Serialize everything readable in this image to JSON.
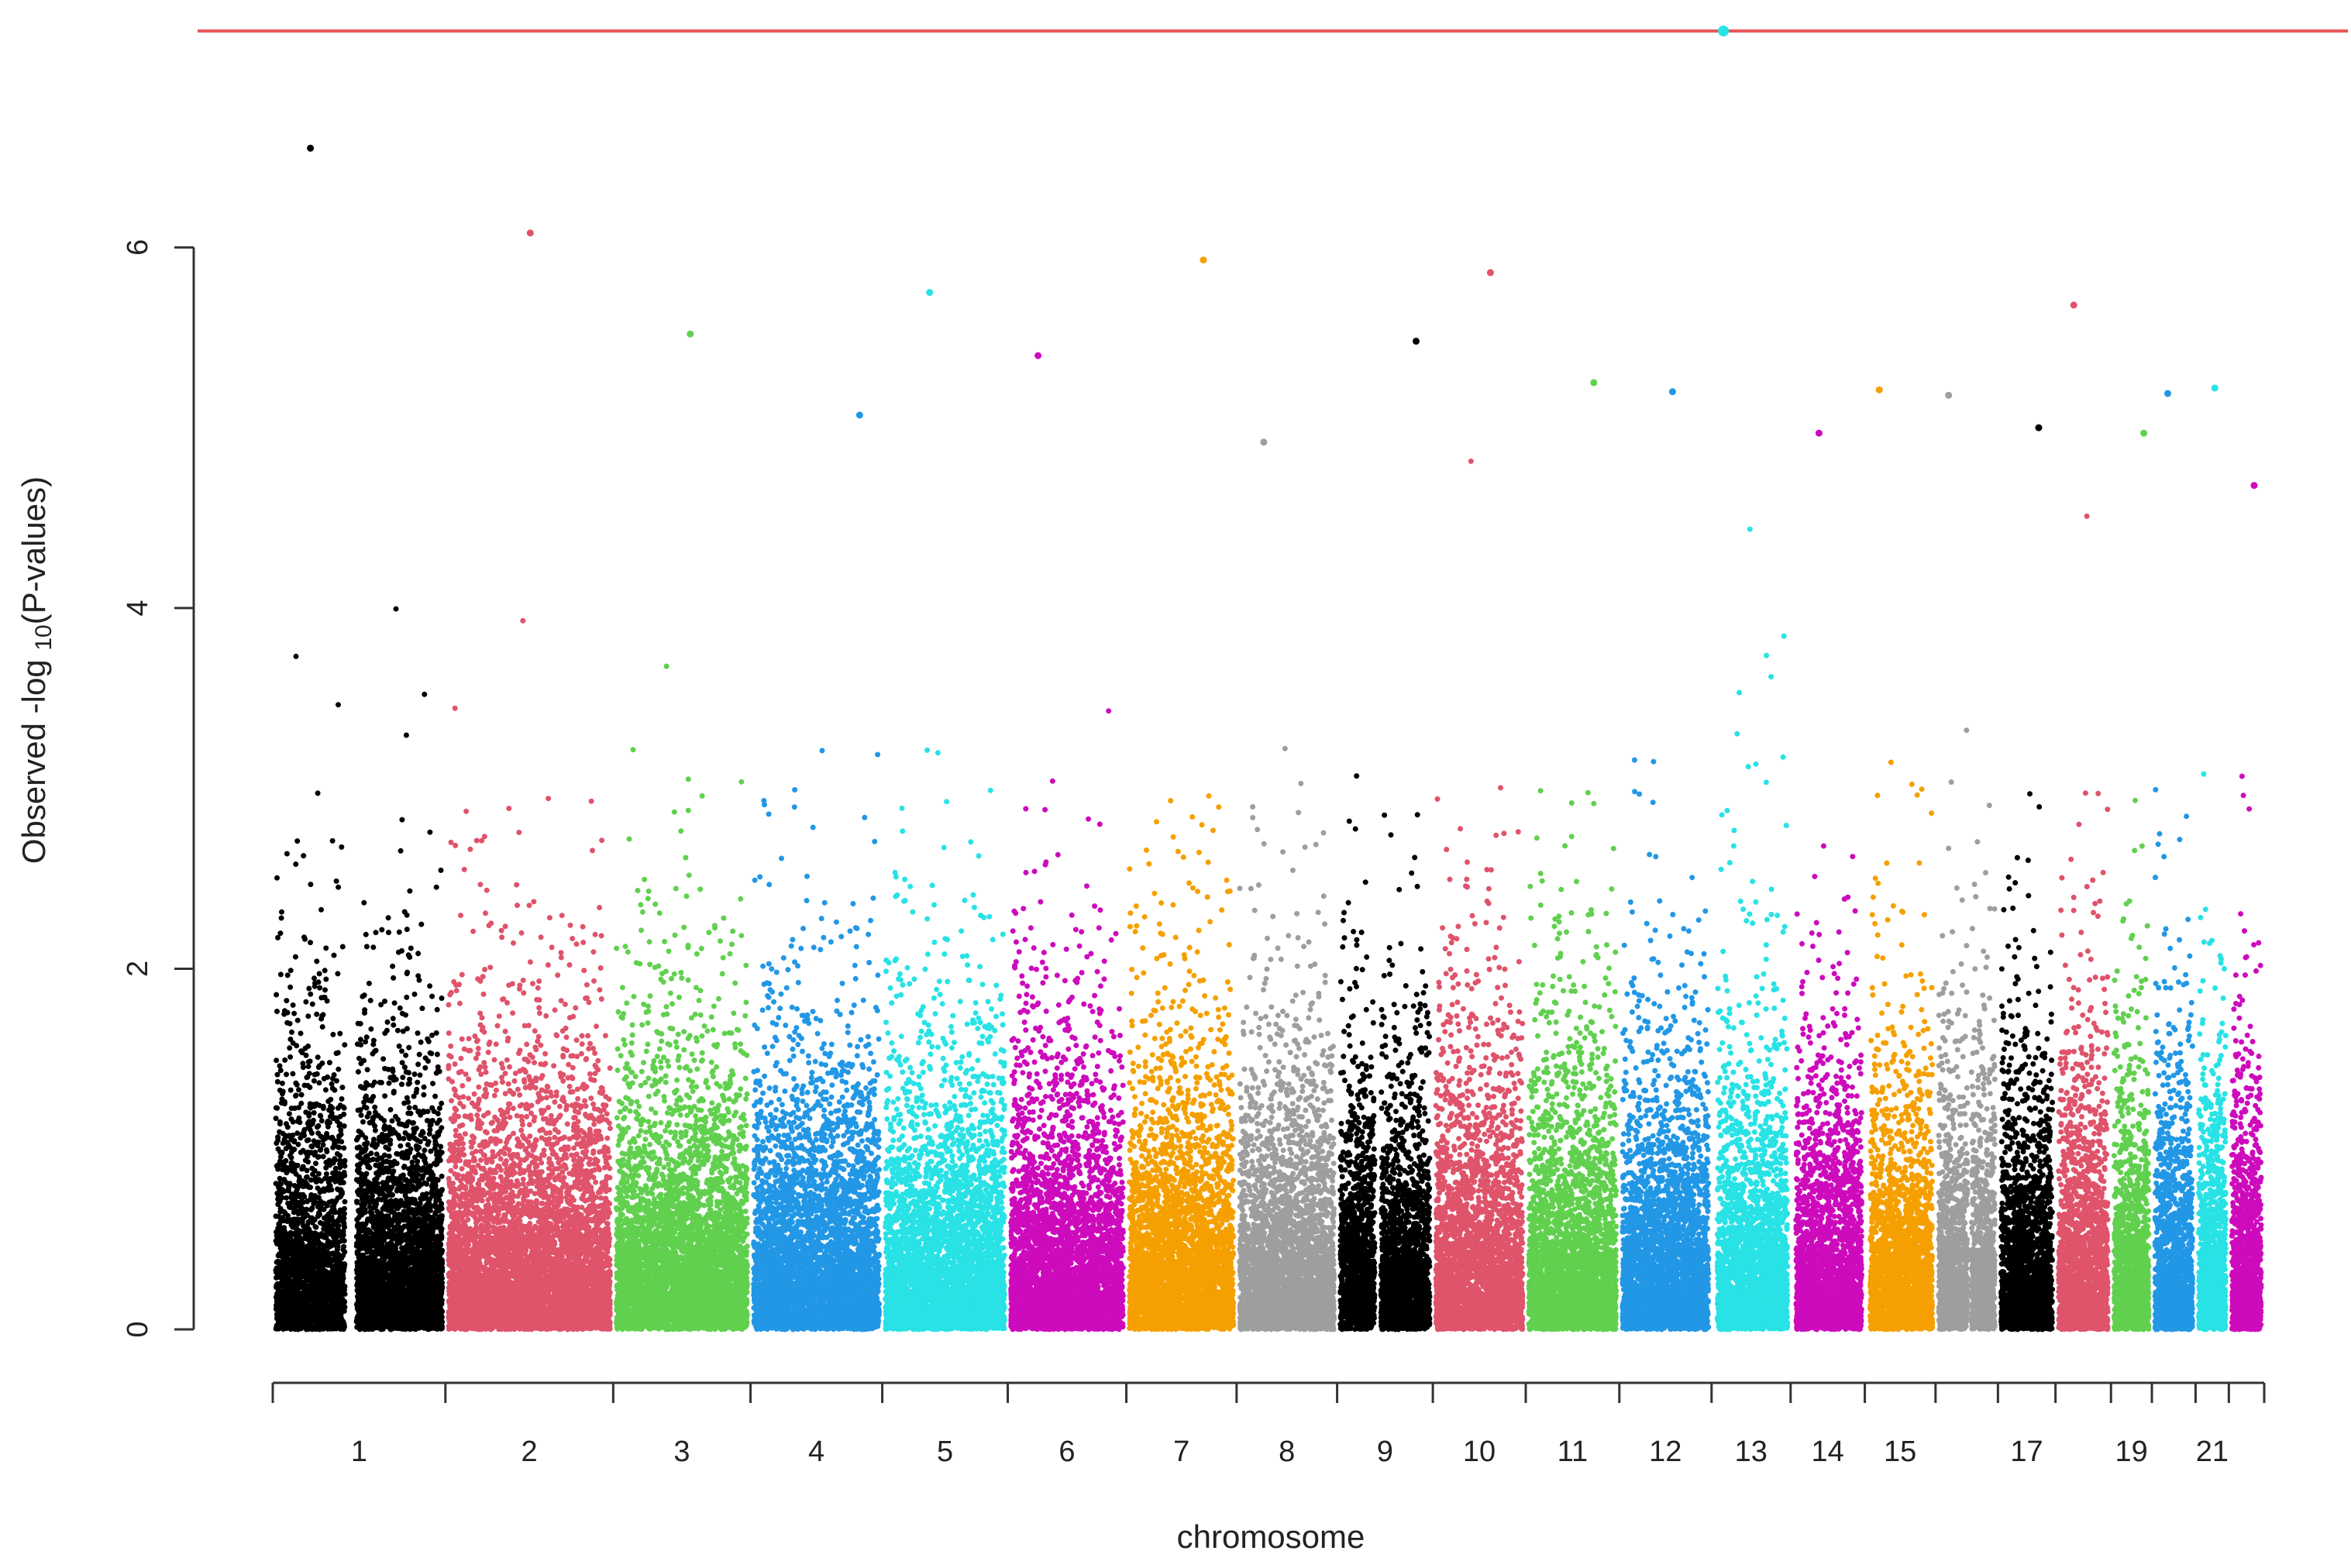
{
  "chart_data": {
    "type": "scatter",
    "subtype": "manhattan",
    "title": "",
    "xlabel": "chromosome",
    "ylabel_parts": [
      "Observed -log ",
      "10",
      "(P-values)"
    ],
    "ylim": [
      0,
      7.2
    ],
    "yticks": [
      "0",
      "2",
      "4",
      "6"
    ],
    "genome_wide_threshold": 7.2,
    "threshold_color": "#e8585a",
    "grid": false,
    "legend": "none",
    "chromosomes": [
      {
        "label": "1",
        "rel_size": 249,
        "color": "#000000",
        "max": 6.55,
        "gap_at": 0.45
      },
      {
        "label": "2",
        "rel_size": 242,
        "color": "#df536b",
        "max": 6.08
      },
      {
        "label": "3",
        "rel_size": 198,
        "color": "#61d04f",
        "max": 5.52
      },
      {
        "label": "4",
        "rel_size": 190,
        "color": "#2297e6",
        "max": 5.07
      },
      {
        "label": "5",
        "rel_size": 181,
        "color": "#28e2e5",
        "max": 5.75
      },
      {
        "label": "6",
        "rel_size": 171,
        "color": "#cd0bbc",
        "max": 5.4
      },
      {
        "label": "7",
        "rel_size": 159,
        "color": "#f5a000",
        "max": 5.93
      },
      {
        "label": "8",
        "rel_size": 145,
        "color": "#9e9e9e",
        "max": 4.92
      },
      {
        "label": "9",
        "rel_size": 138,
        "color": "#000000",
        "max": 5.48,
        "gap_at": 0.42
      },
      {
        "label": "10",
        "rel_size": 134,
        "color": "#df536b",
        "max": 5.86
      },
      {
        "label": "11",
        "rel_size": 135,
        "color": "#61d04f",
        "max": 5.25
      },
      {
        "label": "12",
        "rel_size": 133,
        "color": "#2297e6",
        "max": 5.2
      },
      {
        "label": "13",
        "rel_size": 114,
        "color": "#28e2e5",
        "max": 7.2,
        "gap_at": 0.0
      },
      {
        "label": "14",
        "rel_size": 107,
        "color": "#cd0bbc",
        "max": 4.97,
        "gap_at": 0.0
      },
      {
        "label": "15",
        "rel_size": 102,
        "color": "#f5a000",
        "max": 5.21,
        "gap_at": 0.0
      },
      {
        "label": "",
        "rel_size": 90,
        "color": "#9e9e9e",
        "max": 5.18,
        "gap_at": 0.55
      },
      {
        "label": "17",
        "rel_size": 83,
        "color": "#000000",
        "max": 5.0
      },
      {
        "label": "",
        "rel_size": 80,
        "color": "#df536b",
        "max": 5.68
      },
      {
        "label": "19",
        "rel_size": 59,
        "color": "#61d04f",
        "max": 4.97
      },
      {
        "label": "",
        "rel_size": 63,
        "color": "#2297e6",
        "max": 5.19
      },
      {
        "label": "21",
        "rel_size": 48,
        "color": "#28e2e5",
        "max": 5.22
      },
      {
        "label": "",
        "rel_size": 51,
        "color": "#cd0bbc",
        "max": 4.68
      }
    ]
  }
}
